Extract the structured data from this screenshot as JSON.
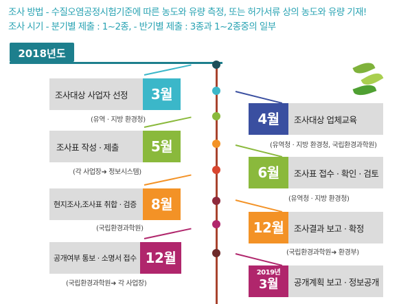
{
  "header": {
    "line1": "조사 방법 - 수질오염공정시험기준에 따른 농도와 유량 측정, 또는 허가서류 상의 농도와 유량 기재!",
    "line2": "조사 시기 - 분기별 제출 : 1~2종,    - 반기별 제출 : 3종과 1~2종중의 일부"
  },
  "year_badge": "2018년도",
  "colors": {
    "teal": "#3bb7c9",
    "green": "#8ab93c",
    "orange": "#f39226",
    "red": "#d9462f",
    "magenta": "#b0266c",
    "maroon": "#6e2a2a",
    "dark_teal": "#1d7f8d"
  },
  "left_steps": [
    {
      "label": "조사대상 사업자 선정",
      "month": "3월",
      "note": "(유역 · 지방 환경청)"
    },
    {
      "label": "조사표 작성 · 제출",
      "month": "5월",
      "note": "(각 사업장➜ 정보시스템)"
    },
    {
      "label": "현지조사,조사표 취합 · 검증",
      "month": "8월",
      "note": "(국립환경과학원)"
    },
    {
      "label": "공개여부 통보 · 소명서 접수",
      "month": "12월",
      "note": "(국립환경과학원➜ 각 사업장)"
    }
  ],
  "right_steps": [
    {
      "label": "조사대상 업체교육",
      "month": "4월",
      "note": "(유역청 · 지방 환경청, 국립환경과학원)"
    },
    {
      "label": "조사표 접수 · 확인 · 검토",
      "month": "6월",
      "note": "(유역청 · 지방 환경청)"
    },
    {
      "label": "조사결과 보고 · 확정",
      "month": "12월",
      "note": "(국립환경과학원➜ 환경부)"
    },
    {
      "label": "공개계획 보고 · 정보공개",
      "month_year": "2019년",
      "month": "3월",
      "note": ""
    }
  ]
}
